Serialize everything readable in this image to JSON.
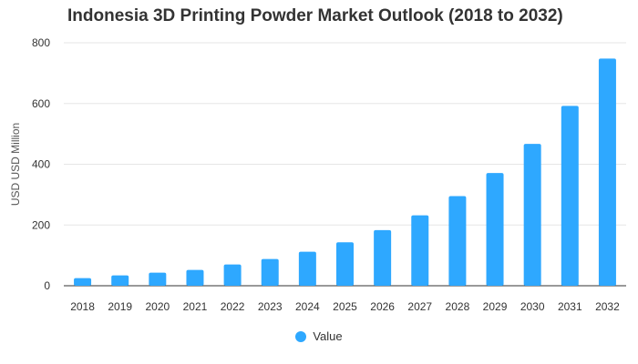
{
  "chart_data": {
    "type": "bar",
    "title": "Indonesia 3D Printing Powder Market Outlook (2018 to 2032)",
    "xlabel": "",
    "ylabel": "USD USD Million",
    "categories": [
      "2018",
      "2019",
      "2020",
      "2021",
      "2022",
      "2023",
      "2024",
      "2025",
      "2026",
      "2027",
      "2028",
      "2029",
      "2030",
      "2031",
      "2032"
    ],
    "series": [
      {
        "name": "Value",
        "values": [
          25,
          34,
          43,
          52,
          70,
          88,
          112,
          143,
          183,
          232,
          295,
          371,
          467,
          592,
          748
        ]
      }
    ],
    "ylim": [
      0,
      800
    ],
    "yticks": [
      0,
      200,
      400,
      600,
      800
    ],
    "grid": true,
    "legend_position": "bottom-center",
    "colors": {
      "bar": "#2ea8ff",
      "grid": "#e6e6e6",
      "axis": "#333333",
      "text": "#333333"
    }
  }
}
